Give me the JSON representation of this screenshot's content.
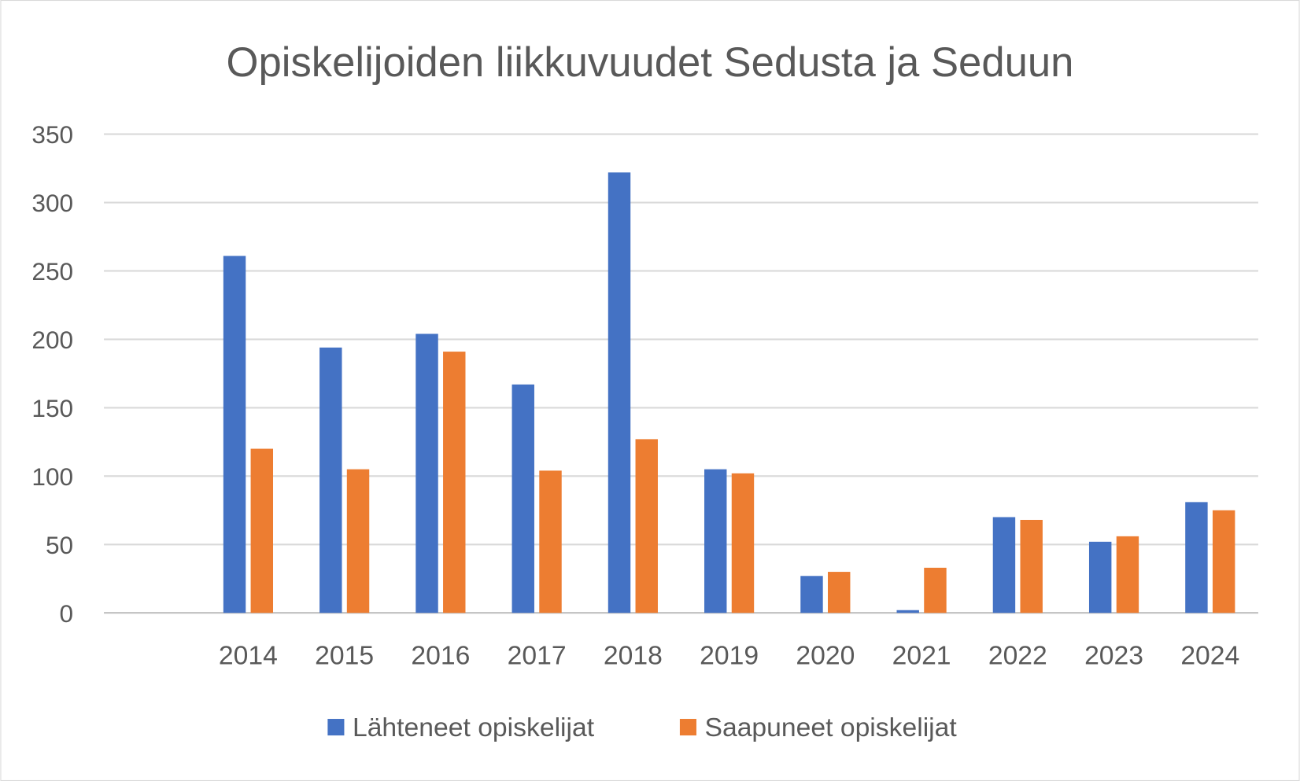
{
  "chart_data": {
    "type": "bar",
    "title": "Opiskelijoiden liikkuvuudet Sedusta ja Seduun",
    "xlabel": "",
    "ylabel": "",
    "categories": [
      "",
      "2014",
      "2015",
      "2016",
      "2017",
      "2018",
      "2019",
      "2020",
      "2021",
      "2022",
      "2023",
      "2024"
    ],
    "series": [
      {
        "name": "Lähteneet opiskelijat",
        "color": "#4472C4",
        "values": [
          null,
          261,
          194,
          204,
          167,
          322,
          105,
          27,
          2,
          70,
          52,
          81
        ]
      },
      {
        "name": "Saapuneet opiskelijat",
        "color": "#ED7D31",
        "values": [
          null,
          120,
          105,
          191,
          104,
          127,
          102,
          30,
          33,
          68,
          56,
          75
        ]
      }
    ],
    "ylim": [
      0,
      350
    ],
    "yticks": [
      "0",
      "50",
      "100",
      "150",
      "200",
      "250",
      "300",
      "350"
    ],
    "grid": true,
    "legend_position": "bottom"
  }
}
